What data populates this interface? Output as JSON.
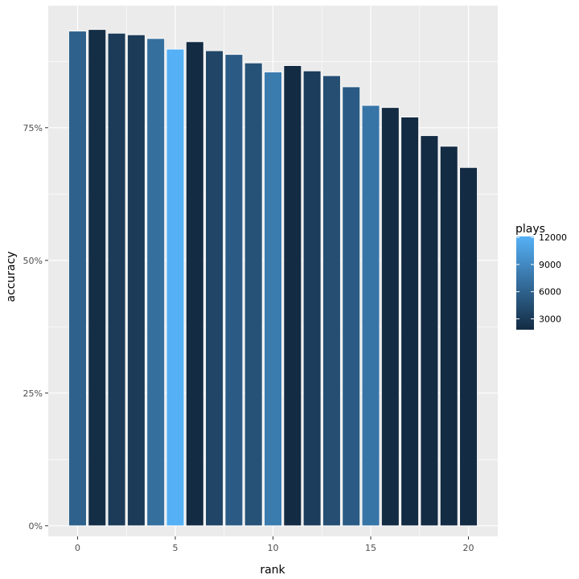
{
  "chart_data": {
    "type": "bar",
    "xlabel": "rank",
    "ylabel": "accuracy",
    "x": [
      0,
      1,
      2,
      3,
      4,
      5,
      6,
      7,
      8,
      9,
      10,
      11,
      12,
      13,
      14,
      15,
      16,
      17,
      18,
      19,
      20
    ],
    "values": [
      0.932,
      0.935,
      0.928,
      0.925,
      0.918,
      0.898,
      0.912,
      0.895,
      0.888,
      0.872,
      0.855,
      0.867,
      0.857,
      0.848,
      0.827,
      0.792,
      0.788,
      0.77,
      0.735,
      0.715,
      0.675
    ],
    "plays": [
      6000,
      2000,
      3000,
      3000,
      7000,
      12000,
      1800,
      3800,
      5500,
      4800,
      8000,
      1800,
      3200,
      4500,
      5500,
      7500,
      1800,
      1800,
      1800,
      1800,
      1800
    ],
    "xticks": [
      0,
      5,
      10,
      15,
      20
    ],
    "xtick_labels": [
      "0",
      "5",
      "10",
      "15",
      "20"
    ],
    "xlim": [
      -1.5,
      21.5
    ],
    "yticks": [
      0,
      0.25,
      0.5,
      0.75
    ],
    "ytick_labels": [
      "0%",
      "25%",
      "50%",
      "75%"
    ],
    "ylim": [
      -0.02,
      0.98
    ],
    "grid": true,
    "legend": {
      "title": "plays",
      "placement": "right",
      "ticks": [
        3000,
        6000,
        9000,
        12000
      ],
      "tick_labels": [
        "3000",
        "6000",
        "9000",
        "12000"
      ],
      "range": [
        1800,
        12100
      ],
      "color_low": "#132B43",
      "color_high": "#56B1F7"
    },
    "colors": {
      "panel_bg": "#EBEBEB",
      "grid": "#FFFFFF",
      "bar_outline": "#FFFFFF"
    }
  }
}
